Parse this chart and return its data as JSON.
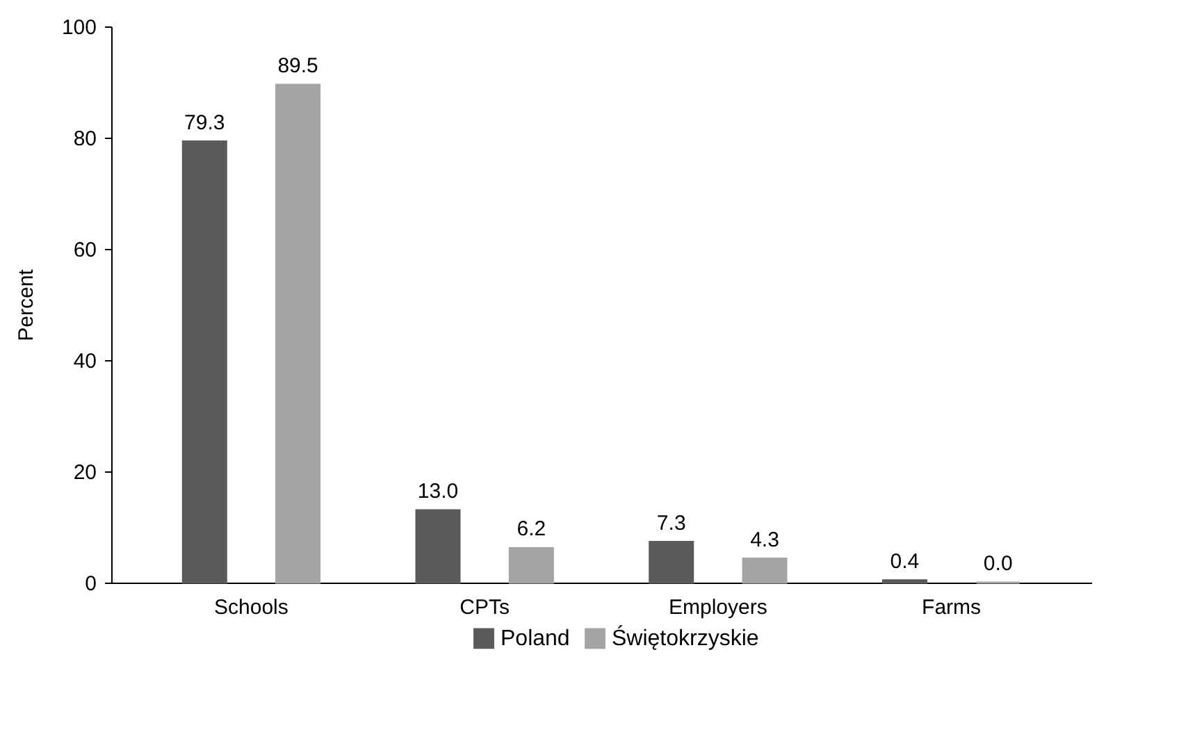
{
  "chart_data": {
    "type": "bar",
    "ylabel": "Percent",
    "categories": [
      "Schools",
      "CPTs",
      "Employers",
      "Farms"
    ],
    "series": [
      {
        "name": "Poland",
        "color": "#5a5a5c",
        "values": [
          79.3,
          13.0,
          7.3,
          0.4
        ],
        "value_labels": [
          "79.3",
          "13.0",
          "7.3",
          "0.4"
        ]
      },
      {
        "name": "Świętokrzyskie",
        "color": "#a4a4a6",
        "values": [
          89.5,
          6.2,
          4.3,
          0.0
        ],
        "value_labels": [
          "89.5",
          "6.2",
          "4.3",
          "0.0"
        ]
      }
    ],
    "ylim": [
      0,
      100
    ],
    "yticks": [
      0,
      20,
      40,
      60,
      80,
      100
    ],
    "grid": false,
    "legend": "bottom"
  }
}
